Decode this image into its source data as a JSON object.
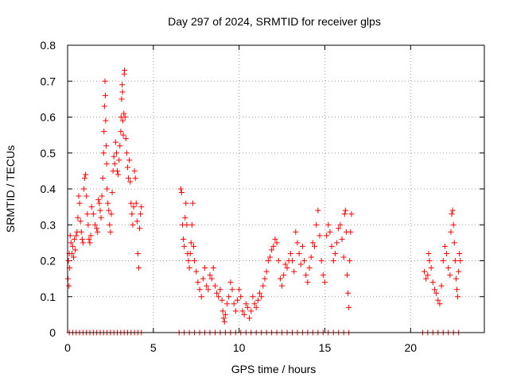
{
  "chart_data": {
    "type": "scatter",
    "title": "Day 297 of 2024, SRMTID for receiver glps",
    "xlabel": "GPS time / hours",
    "ylabel": "SRMTID / TECUs",
    "xlim": [
      0,
      24.3
    ],
    "ylim": [
      0,
      0.8
    ],
    "x_ticks": [
      0,
      5,
      10,
      15,
      20
    ],
    "y_ticks": [
      0,
      0.1,
      0.2,
      0.3,
      0.4,
      0.5,
      0.6,
      0.7,
      0.8
    ],
    "x_tick_labels": [
      "0",
      "5",
      "10",
      "15",
      "20"
    ],
    "y_tick_labels": [
      "0",
      "0.1",
      "0.2",
      "0.3",
      "0.4",
      "0.5",
      "0.6",
      "0.7",
      "0.8"
    ],
    "grid": true,
    "marker": "+",
    "color": "#ff0000",
    "series": [
      {
        "name": "SRMTID",
        "points": [
          [
            0.02,
            0.15
          ],
          [
            0.05,
            0.2
          ],
          [
            0.08,
            0.13
          ],
          [
            0.1,
            0.22
          ],
          [
            0.12,
            0.18
          ],
          [
            0.15,
            0.27
          ],
          [
            0.2,
            0.25
          ],
          [
            0.25,
            0.22
          ],
          [
            0.3,
            0.24
          ],
          [
            0.35,
            0.21
          ],
          [
            0.4,
            0.26
          ],
          [
            0.45,
            0.23
          ],
          [
            0.5,
            0.27
          ],
          [
            0.55,
            0.28
          ],
          [
            0.6,
            0.32
          ],
          [
            0.65,
            0.38
          ],
          [
            0.7,
            0.36
          ],
          [
            0.75,
            0.31
          ],
          [
            0.8,
            0.28
          ],
          [
            0.85,
            0.26
          ],
          [
            0.9,
            0.25
          ],
          [
            0.95,
            0.4
          ],
          [
            1.0,
            0.43
          ],
          [
            1.05,
            0.44
          ],
          [
            1.1,
            0.38
          ],
          [
            1.15,
            0.33
          ],
          [
            1.2,
            0.3
          ],
          [
            1.25,
            0.26
          ],
          [
            1.3,
            0.25
          ],
          [
            1.35,
            0.27
          ],
          [
            1.4,
            0.35
          ],
          [
            1.5,
            0.33
          ],
          [
            1.6,
            0.3
          ],
          [
            1.7,
            0.29
          ],
          [
            1.75,
            0.28
          ],
          [
            1.8,
            0.37
          ],
          [
            1.85,
            0.36
          ],
          [
            1.9,
            0.34
          ],
          [
            1.95,
            0.32
          ],
          [
            2.0,
            0.38
          ],
          [
            2.05,
            0.43
          ],
          [
            2.1,
            0.5
          ],
          [
            2.12,
            0.56
          ],
          [
            2.15,
            0.63
          ],
          [
            2.18,
            0.7
          ],
          [
            2.2,
            0.66
          ],
          [
            2.22,
            0.59
          ],
          [
            2.25,
            0.52
          ],
          [
            2.28,
            0.47
          ],
          [
            2.3,
            0.4
          ],
          [
            2.35,
            0.36
          ],
          [
            2.4,
            0.34
          ],
          [
            2.45,
            0.3
          ],
          [
            2.5,
            0.28
          ],
          [
            2.55,
            0.33
          ],
          [
            2.6,
            0.39
          ],
          [
            2.65,
            0.45
          ],
          [
            2.7,
            0.49
          ],
          [
            2.75,
            0.47
          ],
          [
            2.8,
            0.53
          ],
          [
            2.85,
            0.5
          ],
          [
            2.9,
            0.45
          ],
          [
            2.95,
            0.44
          ],
          [
            3.0,
            0.48
          ],
          [
            3.05,
            0.52
          ],
          [
            3.1,
            0.56
          ],
          [
            3.12,
            0.6
          ],
          [
            3.15,
            0.65
          ],
          [
            3.18,
            0.69
          ],
          [
            3.2,
            0.67
          ],
          [
            3.22,
            0.59
          ],
          [
            3.25,
            0.55
          ],
          [
            3.28,
            0.61
          ],
          [
            3.3,
            0.72
          ],
          [
            3.32,
            0.73
          ],
          [
            3.35,
            0.6
          ],
          [
            3.4,
            0.54
          ],
          [
            3.45,
            0.5
          ],
          [
            3.5,
            0.46
          ],
          [
            3.55,
            0.43
          ],
          [
            3.6,
            0.48
          ],
          [
            3.65,
            0.42
          ],
          [
            3.7,
            0.36
          ],
          [
            3.75,
            0.33
          ],
          [
            3.8,
            0.3
          ],
          [
            3.85,
            0.35
          ],
          [
            3.9,
            0.45
          ],
          [
            3.95,
            0.43
          ],
          [
            4.0,
            0.36
          ],
          [
            4.05,
            0.31
          ],
          [
            4.1,
            0.22
          ],
          [
            4.15,
            0.18
          ],
          [
            4.2,
            0.29
          ],
          [
            4.25,
            0.33
          ],
          [
            4.3,
            0.35
          ],
          [
            6.6,
            0.4
          ],
          [
            6.65,
            0.39
          ],
          [
            6.7,
            0.3
          ],
          [
            6.75,
            0.26
          ],
          [
            6.8,
            0.24
          ],
          [
            6.85,
            0.32
          ],
          [
            6.9,
            0.36
          ],
          [
            6.95,
            0.3
          ],
          [
            7.0,
            0.22
          ],
          [
            7.05,
            0.2
          ],
          [
            7.1,
            0.18
          ],
          [
            7.15,
            0.22
          ],
          [
            7.2,
            0.25
          ],
          [
            7.25,
            0.3
          ],
          [
            7.3,
            0.36
          ],
          [
            7.35,
            0.24
          ],
          [
            7.4,
            0.2
          ],
          [
            7.5,
            0.17
          ],
          [
            7.6,
            0.14
          ],
          [
            7.7,
            0.12
          ],
          [
            7.8,
            0.1
          ],
          [
            7.9,
            0.15
          ],
          [
            8.0,
            0.18
          ],
          [
            8.1,
            0.13
          ],
          [
            8.2,
            0.12
          ],
          [
            8.3,
            0.16
          ],
          [
            8.4,
            0.15
          ],
          [
            8.5,
            0.18
          ],
          [
            8.6,
            0.13
          ],
          [
            8.7,
            0.11
          ],
          [
            8.8,
            0.1
          ],
          [
            8.9,
            0.12
          ],
          [
            9.0,
            0.09
          ],
          [
            9.05,
            0.06
          ],
          [
            9.1,
            0.04
          ],
          [
            9.15,
            0.03
          ],
          [
            9.2,
            0.05
          ],
          [
            9.3,
            0.08
          ],
          [
            9.4,
            0.1
          ],
          [
            9.5,
            0.14
          ],
          [
            9.6,
            0.12
          ],
          [
            9.7,
            0.08
          ],
          [
            9.8,
            0.06
          ],
          [
            9.9,
            0.09
          ],
          [
            10.0,
            0.12
          ],
          [
            10.1,
            0.1
          ],
          [
            10.2,
            0.06
          ],
          [
            10.3,
            0.05
          ],
          [
            10.4,
            0.08
          ],
          [
            10.5,
            0.07
          ],
          [
            10.6,
            0.04
          ],
          [
            10.7,
            0.06
          ],
          [
            10.8,
            0.1
          ],
          [
            10.9,
            0.08
          ],
          [
            11.0,
            0.07
          ],
          [
            11.1,
            0.09
          ],
          [
            11.2,
            0.11
          ],
          [
            11.3,
            0.1
          ],
          [
            11.4,
            0.13
          ],
          [
            11.5,
            0.15
          ],
          [
            11.6,
            0.17
          ],
          [
            11.7,
            0.2
          ],
          [
            11.8,
            0.21
          ],
          [
            11.9,
            0.23
          ],
          [
            12.0,
            0.24
          ],
          [
            12.1,
            0.26
          ],
          [
            12.2,
            0.25
          ],
          [
            12.3,
            0.2
          ],
          [
            12.4,
            0.15
          ],
          [
            12.5,
            0.13
          ],
          [
            12.6,
            0.16
          ],
          [
            12.7,
            0.19
          ],
          [
            12.8,
            0.18
          ],
          [
            12.9,
            0.2
          ],
          [
            13.0,
            0.22
          ],
          [
            13.1,
            0.2
          ],
          [
            13.2,
            0.17
          ],
          [
            13.3,
            0.28
          ],
          [
            13.4,
            0.25
          ],
          [
            13.5,
            0.22
          ],
          [
            13.6,
            0.19
          ],
          [
            13.7,
            0.24
          ],
          [
            13.8,
            0.2
          ],
          [
            13.9,
            0.16
          ],
          [
            14.0,
            0.14
          ],
          [
            14.1,
            0.18
          ],
          [
            14.2,
            0.21
          ],
          [
            14.3,
            0.25
          ],
          [
            14.4,
            0.24
          ],
          [
            14.5,
            0.3
          ],
          [
            14.6,
            0.34
          ],
          [
            14.7,
            0.27
          ],
          [
            14.8,
            0.2
          ],
          [
            14.9,
            0.16
          ],
          [
            15.0,
            0.14
          ],
          [
            15.1,
            0.27
          ],
          [
            15.2,
            0.3
          ],
          [
            15.3,
            0.28
          ],
          [
            15.4,
            0.24
          ],
          [
            15.5,
            0.2
          ],
          [
            15.6,
            0.22
          ],
          [
            15.7,
            0.25
          ],
          [
            15.8,
            0.29
          ],
          [
            15.9,
            0.3
          ],
          [
            16.0,
            0.26
          ],
          [
            16.1,
            0.21
          ],
          [
            16.15,
            0.33
          ],
          [
            16.2,
            0.34
          ],
          [
            16.25,
            0.28
          ],
          [
            16.3,
            0.16
          ],
          [
            16.35,
            0.11
          ],
          [
            16.4,
            0.07
          ],
          [
            16.45,
            0.2
          ],
          [
            16.5,
            0.28
          ],
          [
            16.55,
            0.33
          ],
          [
            20.8,
            0.17
          ],
          [
            20.9,
            0.15
          ],
          [
            21.0,
            0.16
          ],
          [
            21.05,
            0.22
          ],
          [
            21.1,
            0.2
          ],
          [
            21.2,
            0.18
          ],
          [
            21.3,
            0.14
          ],
          [
            21.4,
            0.12
          ],
          [
            21.5,
            0.11
          ],
          [
            21.6,
            0.09
          ],
          [
            21.7,
            0.08
          ],
          [
            21.8,
            0.13
          ],
          [
            21.9,
            0.2
          ],
          [
            22.0,
            0.24
          ],
          [
            22.1,
            0.22
          ],
          [
            22.2,
            0.18
          ],
          [
            22.3,
            0.16
          ],
          [
            22.35,
            0.28
          ],
          [
            22.4,
            0.33
          ],
          [
            22.45,
            0.34
          ],
          [
            22.5,
            0.3
          ],
          [
            22.55,
            0.25
          ],
          [
            22.6,
            0.2
          ],
          [
            22.65,
            0.15
          ],
          [
            22.7,
            0.12
          ],
          [
            22.75,
            0.1
          ],
          [
            22.8,
            0.17
          ],
          [
            22.85,
            0.22
          ],
          [
            22.9,
            0.2
          ],
          [
            0.1,
            0
          ],
          [
            0.3,
            0
          ],
          [
            0.5,
            0
          ],
          [
            0.7,
            0
          ],
          [
            0.9,
            0
          ],
          [
            1.1,
            0
          ],
          [
            1.3,
            0
          ],
          [
            1.5,
            0
          ],
          [
            1.7,
            0
          ],
          [
            1.9,
            0
          ],
          [
            2.1,
            0
          ],
          [
            2.3,
            0
          ],
          [
            2.5,
            0
          ],
          [
            2.7,
            0
          ],
          [
            2.9,
            0
          ],
          [
            3.1,
            0
          ],
          [
            3.3,
            0
          ],
          [
            3.5,
            0
          ],
          [
            3.7,
            0
          ],
          [
            3.9,
            0
          ],
          [
            4.1,
            0
          ],
          [
            4.3,
            0
          ],
          [
            6.5,
            0
          ],
          [
            6.8,
            0
          ],
          [
            7.1,
            0
          ],
          [
            7.4,
            0
          ],
          [
            7.7,
            0
          ],
          [
            8.0,
            0
          ],
          [
            8.3,
            0
          ],
          [
            8.6,
            0
          ],
          [
            8.9,
            0
          ],
          [
            9.2,
            0
          ],
          [
            9.5,
            0
          ],
          [
            9.8,
            0
          ],
          [
            10.1,
            0
          ],
          [
            10.4,
            0
          ],
          [
            10.7,
            0
          ],
          [
            11.0,
            0
          ],
          [
            11.3,
            0
          ],
          [
            11.6,
            0
          ],
          [
            11.9,
            0
          ],
          [
            12.2,
            0
          ],
          [
            12.5,
            0
          ],
          [
            12.8,
            0
          ],
          [
            13.1,
            0
          ],
          [
            13.4,
            0
          ],
          [
            13.7,
            0
          ],
          [
            14.0,
            0
          ],
          [
            14.3,
            0
          ],
          [
            14.6,
            0
          ],
          [
            14.9,
            0
          ],
          [
            15.2,
            0
          ],
          [
            15.5,
            0
          ],
          [
            15.8,
            0
          ],
          [
            16.1,
            0
          ],
          [
            16.4,
            0
          ],
          [
            20.7,
            0
          ],
          [
            21.0,
            0
          ],
          [
            21.3,
            0
          ],
          [
            21.6,
            0
          ],
          [
            21.9,
            0
          ],
          [
            22.2,
            0
          ],
          [
            22.5,
            0
          ],
          [
            22.8,
            0
          ]
        ]
      }
    ]
  }
}
